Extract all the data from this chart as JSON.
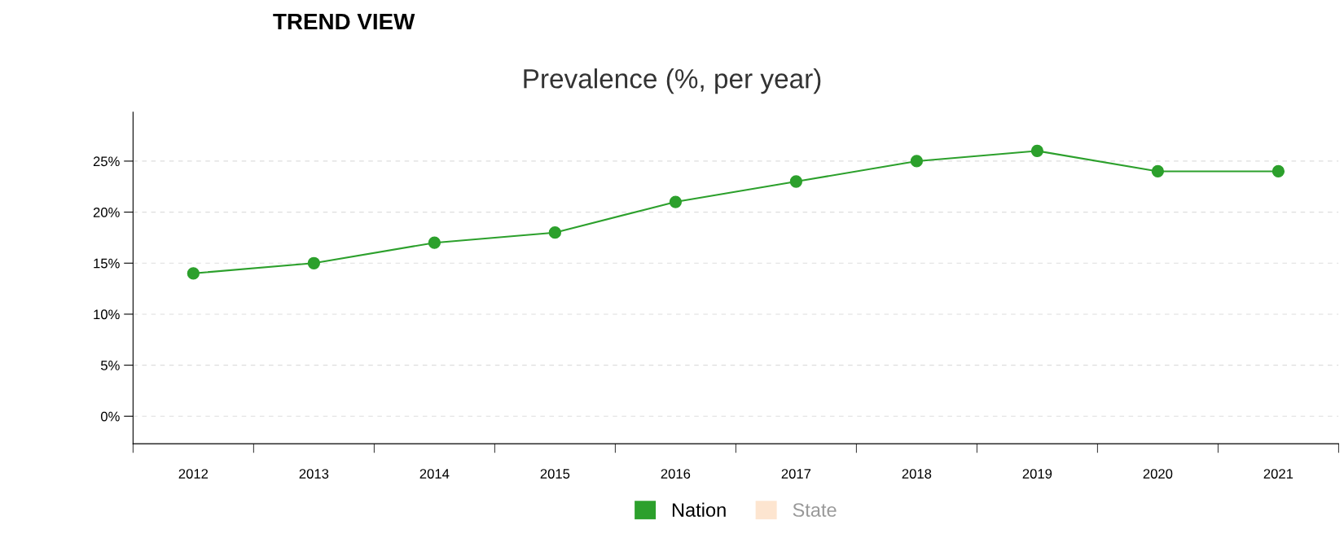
{
  "chart_data": {
    "type": "line",
    "title": "Prevalence (%, per year)",
    "annotations": [
      "TREND VIEW"
    ],
    "categories": [
      "2012",
      "2013",
      "2014",
      "2015",
      "2016",
      "2017",
      "2018",
      "2019",
      "2020",
      "2021"
    ],
    "series": [
      {
        "name": "Nation",
        "color": "#2ca02c",
        "values": [
          14,
          15,
          17,
          18,
          21,
          23,
          25,
          26,
          24,
          24
        ]
      },
      {
        "name": "State",
        "color": "#fde5d0",
        "values": [
          null,
          null,
          null,
          null,
          null,
          null,
          null,
          null,
          null,
          null
        ]
      }
    ],
    "ylim": [
      -2.7,
      29.8
    ],
    "yticks": [
      {
        "value": 0,
        "label": "0%"
      },
      {
        "value": 5,
        "label": "5%"
      },
      {
        "value": 10,
        "label": "10%"
      },
      {
        "value": 15,
        "label": "15%"
      },
      {
        "value": 20,
        "label": "20%"
      },
      {
        "value": 25,
        "label": "25%"
      }
    ],
    "grid": "y",
    "legend": "bottom",
    "marker": "circle",
    "line_style": "solid"
  }
}
